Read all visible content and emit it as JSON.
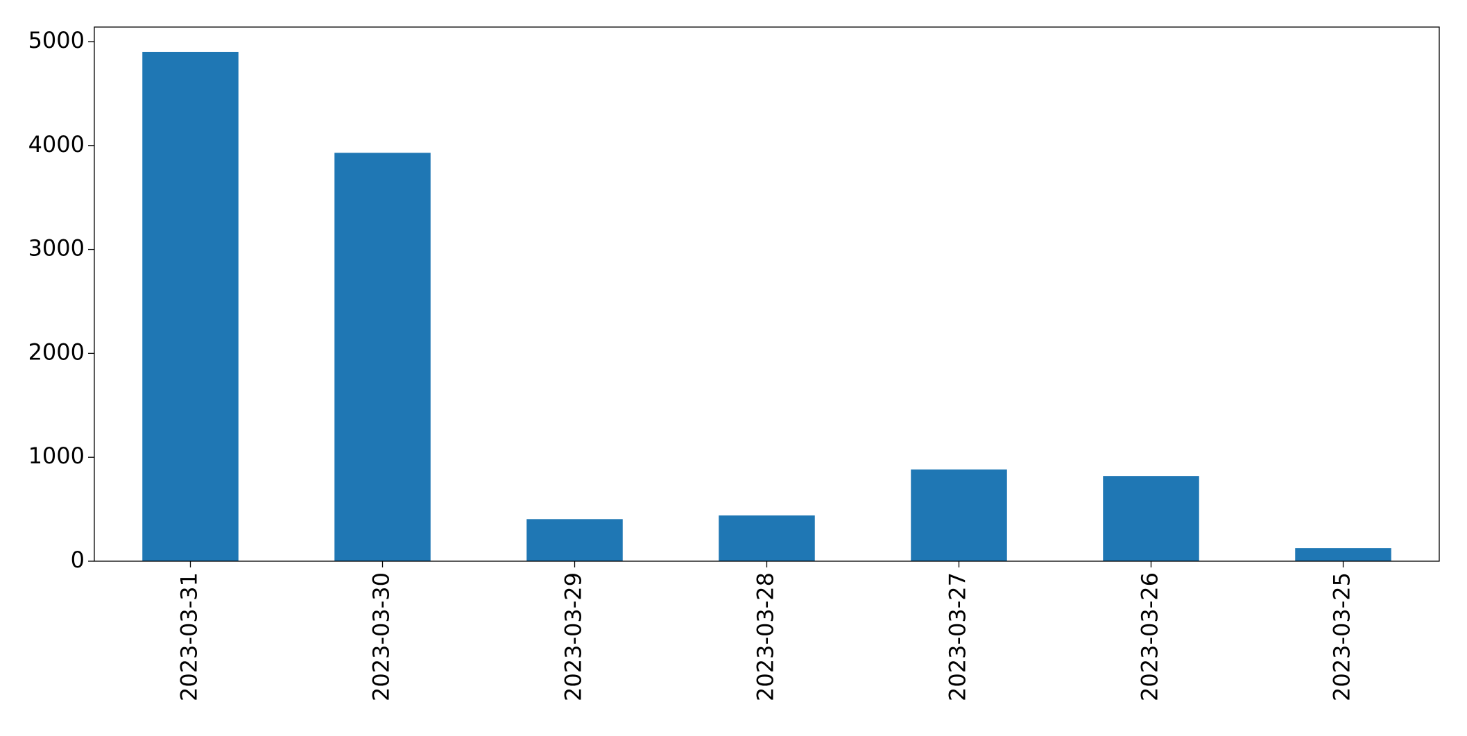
{
  "chart_data": {
    "type": "bar",
    "categories": [
      "2023-03-31",
      "2023-03-30",
      "2023-03-29",
      "2023-03-28",
      "2023-03-27",
      "2023-03-26",
      "2023-03-25"
    ],
    "values": [
      4900,
      3930,
      405,
      440,
      883,
      820,
      126
    ],
    "color": "#1f77b4",
    "ylim": [
      0,
      5140
    ],
    "yticks": [
      0,
      1000,
      2000,
      3000,
      4000,
      5000
    ]
  }
}
